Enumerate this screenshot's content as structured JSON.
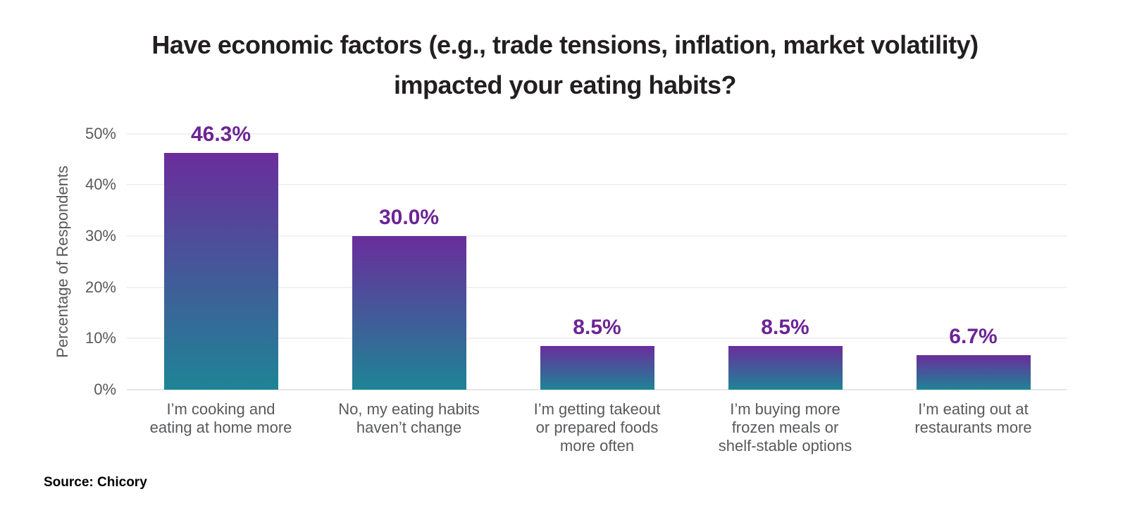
{
  "header": {
    "title_line1": "Have economic factors (e.g., trade tensions, inflation, market volatility)",
    "title_line2": "impacted your eating habits?"
  },
  "chart_data": {
    "type": "bar",
    "title": "Have economic factors (e.g., trade tensions, inflation, market volatility) impacted your eating habits?",
    "categories": [
      "I’m cooking and eating at home more",
      "No, my eating habits haven’t change",
      "I’m getting takeout or prepared foods more often",
      "I’m buying more frozen meals or shelf-stable options",
      "I’m eating out at restaurants more"
    ],
    "categories_display": [
      "I’m cooking and\neating at home more",
      "No, my eating habits\nhaven’t change",
      "I’m getting takeout\nor prepared foods\nmore often",
      "I’m buying more\nfrozen meals or\nshelf-stable options",
      "I’m eating out at\nrestaurants more"
    ],
    "values": [
      46.3,
      30.0,
      8.5,
      8.5,
      6.7
    ],
    "value_labels": [
      "46.3%",
      "30.0%",
      "8.5%",
      "8.5%",
      "6.7%"
    ],
    "xlabel": "",
    "ylabel": "Percentage of Respondents",
    "ylim": [
      0,
      50
    ],
    "ytick_values": [
      0,
      10,
      20,
      30,
      40,
      50
    ],
    "ytick_labels": [
      "0%",
      "10%",
      "20%",
      "30%",
      "40%",
      "50%"
    ],
    "grid": true,
    "legend": false,
    "colors": {
      "bar_gradient_top": "#6a2d9c",
      "bar_gradient_bottom": "#1e8496",
      "value_label": "#6d2496",
      "axis_text": "#58595b",
      "gridline": "#e3e3e3",
      "baseline": "#cfcfcf",
      "title_text": "#231f20"
    }
  },
  "footer": {
    "source": "Source: Chicory"
  }
}
